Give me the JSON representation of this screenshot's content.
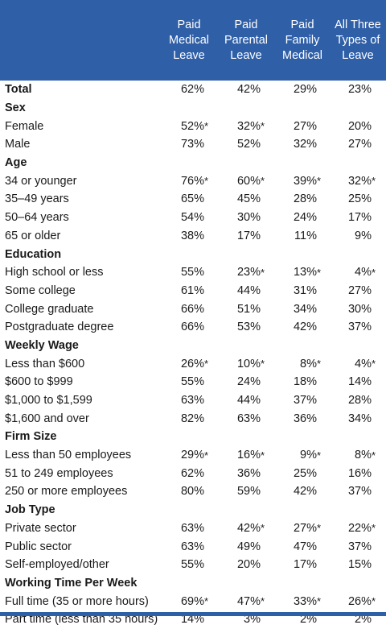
{
  "columns": [
    {
      "label": "Paid\nMedical\nLeave"
    },
    {
      "label": "Paid\nParental\nLeave"
    },
    {
      "label": "Paid\nFamily\nMedical"
    },
    {
      "label": "All Three\nTypes of\nLeave"
    }
  ],
  "rows": [
    {
      "label": "Total",
      "kind": "total",
      "values": [
        "62%",
        "42%",
        "29%",
        "23%"
      ],
      "sig": [
        false,
        false,
        false,
        false
      ]
    },
    {
      "label": "Sex",
      "kind": "section"
    },
    {
      "label": "Female",
      "kind": "data",
      "values": [
        "52%",
        "32%",
        "27%",
        "20%"
      ],
      "sig": [
        true,
        true,
        false,
        false
      ]
    },
    {
      "label": "Male",
      "kind": "data",
      "values": [
        "73%",
        "52%",
        "32%",
        "27%"
      ],
      "sig": [
        false,
        false,
        false,
        false
      ]
    },
    {
      "label": "Age",
      "kind": "section"
    },
    {
      "label": "34 or younger",
      "kind": "data",
      "values": [
        "76%",
        "60%",
        "39%",
        "32%"
      ],
      "sig": [
        true,
        true,
        true,
        true
      ]
    },
    {
      "label": "35–49 years",
      "kind": "data",
      "values": [
        "65%",
        "45%",
        "28%",
        "25%"
      ],
      "sig": [
        false,
        false,
        false,
        false
      ]
    },
    {
      "label": "50–64 years",
      "kind": "data",
      "values": [
        "54%",
        "30%",
        "24%",
        "17%"
      ],
      "sig": [
        false,
        false,
        false,
        false
      ]
    },
    {
      "label": "65 or older",
      "kind": "data",
      "values": [
        "38%",
        "17%",
        "11%",
        "9%"
      ],
      "sig": [
        false,
        false,
        false,
        false
      ]
    },
    {
      "label": "Education",
      "kind": "section"
    },
    {
      "label": "High school or less",
      "kind": "data",
      "values": [
        "55%",
        "23%",
        "13%",
        "4%"
      ],
      "sig": [
        false,
        true,
        true,
        true
      ]
    },
    {
      "label": "Some college",
      "kind": "data",
      "values": [
        "61%",
        "44%",
        "31%",
        "27%"
      ],
      "sig": [
        false,
        false,
        false,
        false
      ]
    },
    {
      "label": "College graduate",
      "kind": "data",
      "values": [
        "66%",
        "51%",
        "34%",
        "30%"
      ],
      "sig": [
        false,
        false,
        false,
        false
      ]
    },
    {
      "label": "Postgraduate degree",
      "kind": "data",
      "values": [
        "66%",
        "53%",
        "42%",
        "37%"
      ],
      "sig": [
        false,
        false,
        false,
        false
      ]
    },
    {
      "label": "Weekly Wage",
      "kind": "section"
    },
    {
      "label": "Less than $600",
      "kind": "data",
      "values": [
        "26%",
        "10%",
        "8%",
        "4%"
      ],
      "sig": [
        true,
        true,
        true,
        true
      ]
    },
    {
      "label": "$600 to $999",
      "kind": "data",
      "values": [
        "55%",
        "24%",
        "18%",
        "14%"
      ],
      "sig": [
        false,
        false,
        false,
        false
      ]
    },
    {
      "label": "$1,000 to $1,599",
      "kind": "data",
      "values": [
        "63%",
        "44%",
        "37%",
        "28%"
      ],
      "sig": [
        false,
        false,
        false,
        false
      ]
    },
    {
      "label": "$1,600 and over",
      "kind": "data",
      "values": [
        "82%",
        "63%",
        "36%",
        "34%"
      ],
      "sig": [
        false,
        false,
        false,
        false
      ]
    },
    {
      "label": "Firm Size",
      "kind": "section"
    },
    {
      "label": "Less than 50 employees",
      "kind": "data",
      "values": [
        "29%",
        "16%",
        "9%",
        "8%"
      ],
      "sig": [
        true,
        true,
        true,
        true
      ]
    },
    {
      "label": "51 to 249 employees",
      "kind": "data",
      "values": [
        "62%",
        "36%",
        "25%",
        "16%"
      ],
      "sig": [
        false,
        false,
        false,
        false
      ]
    },
    {
      "label": "250 or more employees",
      "kind": "data",
      "values": [
        "80%",
        "59%",
        "42%",
        "37%"
      ],
      "sig": [
        false,
        false,
        false,
        false
      ]
    },
    {
      "label": "Job Type",
      "kind": "section"
    },
    {
      "label": "Private sector",
      "kind": "data",
      "values": [
        "63%",
        "42%",
        "27%",
        "22%"
      ],
      "sig": [
        false,
        true,
        true,
        true
      ]
    },
    {
      "label": "Public sector",
      "kind": "data",
      "values": [
        "63%",
        "49%",
        "47%",
        "37%"
      ],
      "sig": [
        false,
        false,
        false,
        false
      ]
    },
    {
      "label": "Self-employed/other",
      "kind": "data",
      "values": [
        "55%",
        "20%",
        "17%",
        "15%"
      ],
      "sig": [
        false,
        false,
        false,
        false
      ]
    },
    {
      "label": "Working Time Per Week",
      "kind": "section"
    },
    {
      "label": "Full time (35 or more hours)",
      "kind": "data",
      "values": [
        "69%",
        "47%",
        "33%",
        "26%"
      ],
      "sig": [
        true,
        true,
        true,
        true
      ]
    },
    {
      "label": "Part time (less than 35 hours)",
      "kind": "data",
      "values": [
        "14%",
        "3%",
        "2%",
        "2%"
      ],
      "sig": [
        false,
        false,
        false,
        false
      ]
    }
  ],
  "sig_marker": "*",
  "colors": {
    "header_bg": "#2f5fa7",
    "header_text": "#ffffff",
    "body_text": "#1a1a1a"
  }
}
